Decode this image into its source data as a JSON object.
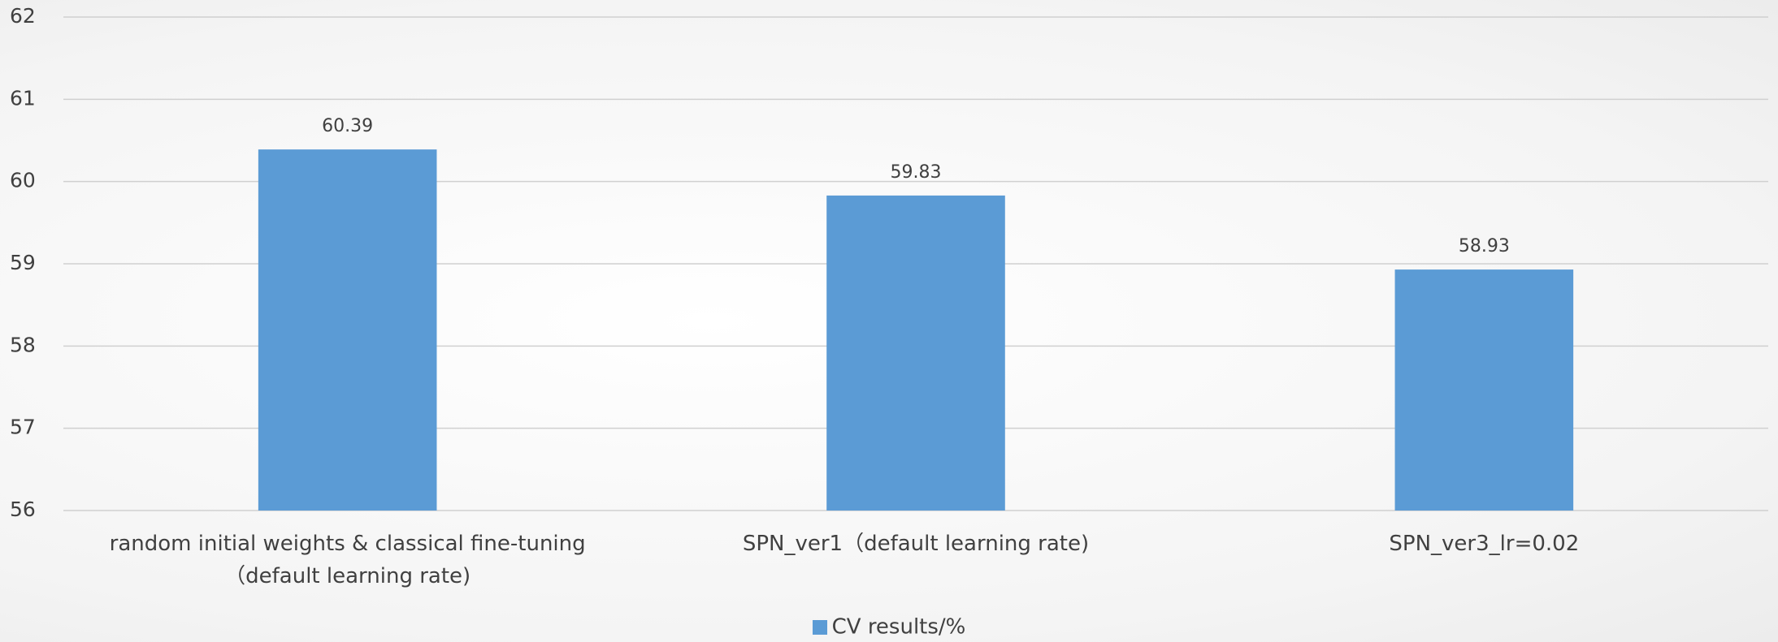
{
  "chart_data": {
    "type": "bar",
    "categories": [
      "random initial weights & classical fine-tuning（default learning rate)",
      "SPN_ver1（default learning rate)",
      "SPN_ver3_lr=0.02"
    ],
    "series": [
      {
        "name": "CV results/%",
        "color": "#5b9bd5",
        "values": [
          60.39,
          59.83,
          58.93
        ]
      }
    ],
    "ylim": [
      56,
      62
    ],
    "yticks": [
      56,
      57,
      58,
      59,
      60,
      61,
      62
    ],
    "grid": true,
    "legend": "bottom"
  }
}
